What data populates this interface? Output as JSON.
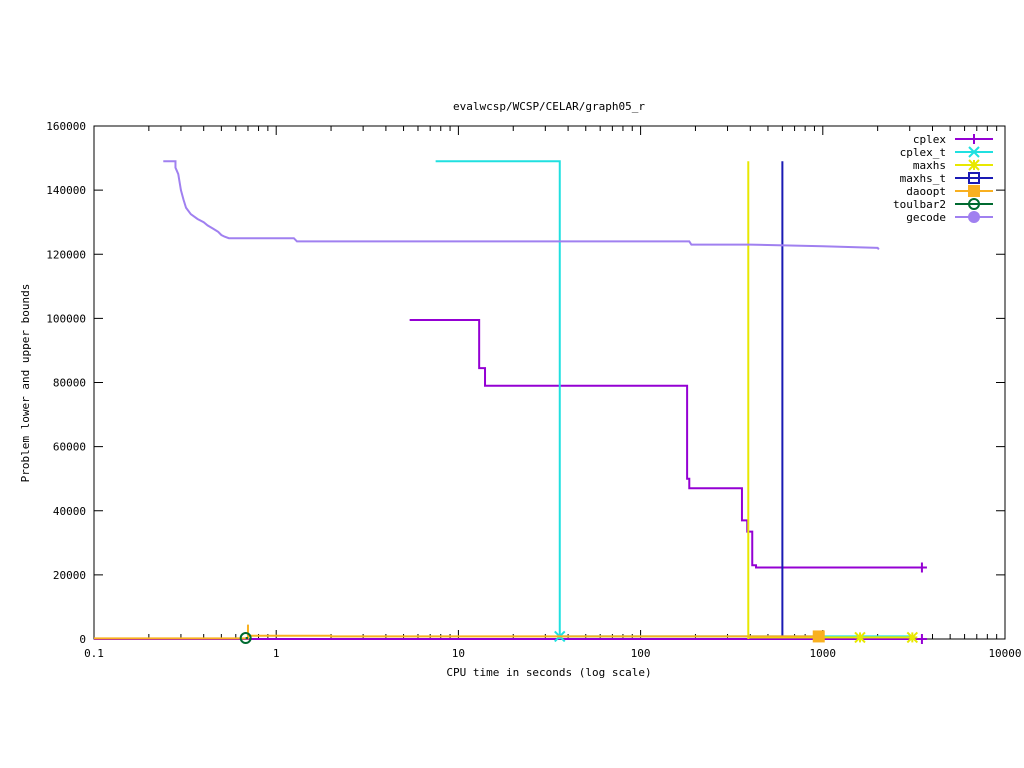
{
  "chart_data": {
    "type": "line",
    "title": "evalwcsp/WCSP/CELAR/graph05_r",
    "xlabel": "CPU time in seconds (log scale)",
    "ylabel": "Problem lower and upper bounds",
    "xscale": "log",
    "xlim": [
      0.1,
      10000
    ],
    "ylim": [
      0,
      160000
    ],
    "xticks": [
      {
        "value": 0.1,
        "label": "0.1"
      },
      {
        "value": 1,
        "label": "1"
      },
      {
        "value": 10,
        "label": "10"
      },
      {
        "value": 100,
        "label": "100"
      },
      {
        "value": 1000,
        "label": "1000"
      },
      {
        "value": 10000,
        "label": "10000"
      }
    ],
    "yticks": [
      {
        "value": 0,
        "label": "0"
      },
      {
        "value": 20000,
        "label": "20000"
      },
      {
        "value": 40000,
        "label": "40000"
      },
      {
        "value": 60000,
        "label": "60000"
      },
      {
        "value": 80000,
        "label": "80000"
      },
      {
        "value": 100000,
        "label": "100000"
      },
      {
        "value": 120000,
        "label": "120000"
      },
      {
        "value": 140000,
        "label": "140000"
      },
      {
        "value": 160000,
        "label": "160000"
      }
    ],
    "legend_position": "top-right",
    "series": [
      {
        "name": "cplex",
        "color": "#9400d3",
        "marker": "plus",
        "points": [
          [
            5.4,
            99500
          ],
          [
            13,
            99500
          ],
          [
            13,
            84500
          ],
          [
            14,
            84500
          ],
          [
            14,
            79000
          ],
          [
            180,
            79000
          ],
          [
            180,
            50000
          ],
          [
            185,
            50000
          ],
          [
            185,
            47000
          ],
          [
            360,
            47000
          ],
          [
            360,
            37000
          ],
          [
            385,
            37000
          ],
          [
            385,
            33500
          ],
          [
            410,
            33500
          ],
          [
            410,
            23000
          ],
          [
            430,
            23000
          ],
          [
            430,
            22300
          ],
          [
            3500,
            22300
          ]
        ],
        "markers": [
          [
            3500,
            22300
          ]
        ],
        "lower": [
          [
            0.1,
            0
          ],
          [
            3500,
            0
          ]
        ],
        "lower_markers": [
          [
            3500,
            0
          ]
        ]
      },
      {
        "name": "cplex_t",
        "color": "#20e0e0",
        "marker": "cross",
        "points": [
          [
            7.5,
            149000
          ],
          [
            36,
            149000
          ],
          [
            36,
            0
          ]
        ],
        "markers": [
          [
            36,
            800
          ]
        ],
        "lower": [
          [
            36,
            800
          ],
          [
            3000,
            800
          ]
        ],
        "lower_markers": []
      },
      {
        "name": "maxhs",
        "color": "#e8e800",
        "marker": "star",
        "points": [
          [
            390,
            149000
          ],
          [
            390,
            0
          ]
        ],
        "markers": [
          [
            1600,
            500
          ],
          [
            3100,
            500
          ]
        ],
        "lower": [
          [
            390,
            500
          ],
          [
            3100,
            500
          ]
        ],
        "lower_markers": []
      },
      {
        "name": "maxhs_t",
        "color": "#1a1ab4",
        "marker": "box",
        "points": [
          [
            600,
            149000
          ],
          [
            600,
            1000
          ]
        ],
        "markers": [],
        "lower": [],
        "lower_markers": []
      },
      {
        "name": "daoopt",
        "color": "#f9b020",
        "marker": "filled-box",
        "points": [
          [
            0.1,
            200
          ],
          [
            0.7,
            200
          ],
          [
            0.7,
            4500
          ],
          [
            0.7,
            1000
          ],
          [
            2,
            1000
          ],
          [
            2,
            800
          ],
          [
            950,
            800
          ]
        ],
        "markers": [
          [
            950,
            800
          ]
        ],
        "lower": [],
        "lower_markers": []
      },
      {
        "name": "toulbar2",
        "color": "#006a30",
        "marker": "circle",
        "points": [
          [
            0.68,
            300
          ],
          [
            0.7,
            300
          ]
        ],
        "markers": [
          [
            0.68,
            300
          ]
        ],
        "lower": [],
        "lower_markers": []
      },
      {
        "name": "gecode",
        "color": "#a080f0",
        "marker": "filled-circle",
        "points": [
          [
            0.24,
            149000
          ],
          [
            0.28,
            149000
          ],
          [
            0.28,
            147000
          ],
          [
            0.29,
            145000
          ],
          [
            0.3,
            140000
          ],
          [
            0.31,
            137000
          ],
          [
            0.32,
            134500
          ],
          [
            0.34,
            132500
          ],
          [
            0.37,
            131000
          ],
          [
            0.4,
            130000
          ],
          [
            0.42,
            129000
          ],
          [
            0.45,
            128000
          ],
          [
            0.48,
            127000
          ],
          [
            0.5,
            126000
          ],
          [
            0.52,
            125500
          ],
          [
            0.55,
            125000
          ],
          [
            1.25,
            125000
          ],
          [
            1.3,
            124000
          ],
          [
            185,
            124000
          ],
          [
            190,
            123000
          ],
          [
            400,
            123000
          ],
          [
            1000,
            122500
          ],
          [
            2000,
            122000
          ],
          [
            2030,
            121500
          ]
        ],
        "markers": [],
        "lower": [],
        "lower_markers": []
      }
    ]
  }
}
